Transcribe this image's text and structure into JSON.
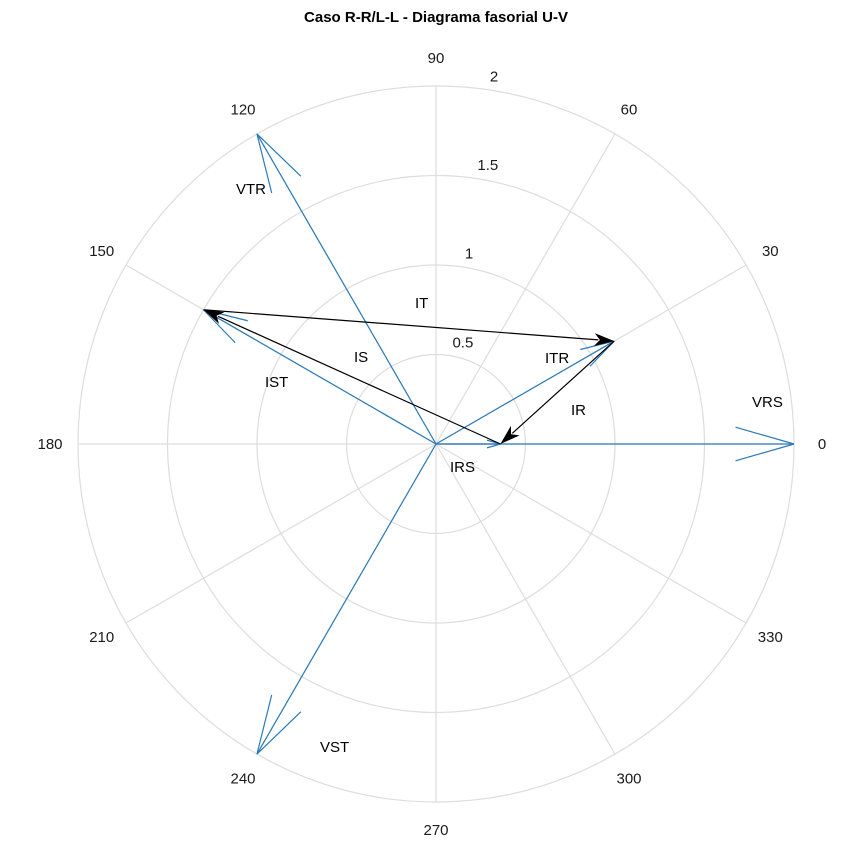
{
  "chart_data": {
    "type": "polar-phasor",
    "title": "Caso R-R/L-L - Diagrama fasorial U-V",
    "radial_ticks": [
      "0.5",
      "1",
      "1.5",
      "2"
    ],
    "radial_tick_values": [
      0.5,
      1,
      1.5,
      2
    ],
    "rlim": [
      0,
      2
    ],
    "angular_ticks": [
      "0",
      "30",
      "60",
      "90",
      "120",
      "150",
      "180",
      "210",
      "240",
      "270",
      "300",
      "330"
    ],
    "angular_tick_values": [
      0,
      30,
      60,
      90,
      120,
      150,
      180,
      210,
      240,
      270,
      300,
      330
    ],
    "grid": true,
    "colors": {
      "voltage": "#2a7ab8",
      "current": "#000000",
      "grid": "#dddddd"
    },
    "phasors": [
      {
        "label": "VRS",
        "from": [
          0,
          0
        ],
        "to_polar": [
          2.0,
          0
        ],
        "color": "#2a7ab8"
      },
      {
        "label": "VTR",
        "from": [
          0,
          0
        ],
        "to_polar": [
          2.0,
          120
        ],
        "color": "#2a7ab8"
      },
      {
        "label": "VST",
        "from": [
          0,
          0
        ],
        "to_polar": [
          2.0,
          240
        ],
        "color": "#2a7ab8"
      },
      {
        "label": "ITR",
        "from": [
          0,
          0
        ],
        "to_polar": [
          1.15,
          30
        ],
        "color": "#2a7ab8"
      },
      {
        "label": "IST",
        "from": [
          0,
          0
        ],
        "to_polar": [
          1.5,
          150
        ],
        "color": "#2a7ab8"
      },
      {
        "label": "IRS",
        "from": [
          0,
          0
        ],
        "to_polar": [
          0.36,
          0
        ],
        "color": "#2a7ab8"
      },
      {
        "label": "IT",
        "from_polar": [
          1.5,
          150
        ],
        "to_polar": [
          1.15,
          30
        ],
        "color": "#000000"
      },
      {
        "label": "IR",
        "from_polar": [
          1.15,
          30
        ],
        "to_polar": [
          0.36,
          0
        ],
        "color": "#000000"
      },
      {
        "label": "IS",
        "from_polar": [
          0.36,
          0
        ],
        "to_polar": [
          1.5,
          150
        ],
        "color": "#000000"
      }
    ]
  }
}
